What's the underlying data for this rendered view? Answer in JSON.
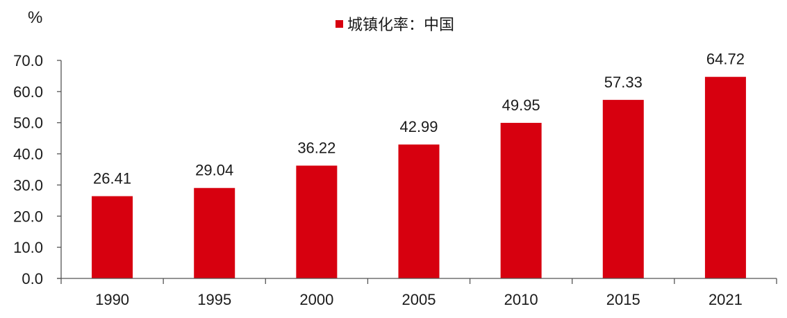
{
  "chart_data": {
    "type": "bar",
    "title": "",
    "unit_label": "%",
    "xlabel": "",
    "ylabel": "%",
    "categories": [
      "1990",
      "1995",
      "2000",
      "2005",
      "2010",
      "2015",
      "2021"
    ],
    "series": [
      {
        "name": "城镇化率：中国",
        "color": "#d7000f",
        "values": [
          26.41,
          29.04,
          36.22,
          42.99,
          49.95,
          57.33,
          64.72
        ]
      }
    ],
    "data_labels": [
      "26.41",
      "29.04",
      "36.22",
      "42.99",
      "49.95",
      "57.33",
      "64.72"
    ],
    "ylim": [
      0,
      70
    ],
    "yticks": [
      "0.0",
      "10.0",
      "20.0",
      "30.0",
      "40.0",
      "50.0",
      "60.0",
      "70.0"
    ],
    "grid": false,
    "legend_position": "top-center"
  },
  "legend": {
    "label": "城镇化率：中国"
  },
  "axis": {
    "unit": "%"
  }
}
